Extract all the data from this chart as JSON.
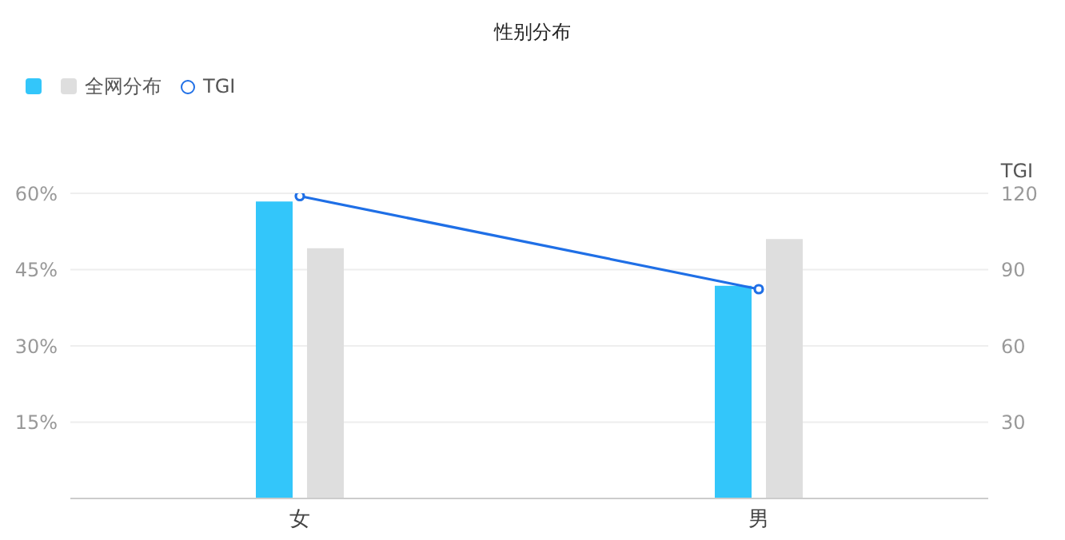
{
  "chart_data": {
    "type": "bar",
    "title": "性别分布",
    "categories": [
      "女",
      "男"
    ],
    "series": [
      {
        "color": "#33c6fa",
        "values": [
          58.4,
          41.8
        ]
      },
      {
        "name": "全网分布",
        "color": "#dedede",
        "values": [
          49.2,
          51.0
        ]
      },
      {
        "name": "TGI",
        "type": "line",
        "axis": "y2",
        "color": "#1f6fe6",
        "values": [
          118.9,
          82.3
        ],
        "marker": "circle"
      }
    ],
    "ylim": [
      0,
      60
    ],
    "yticks": [
      {
        "value": 15,
        "label": "15%"
      },
      {
        "value": 30,
        "label": "30%"
      },
      {
        "value": 45,
        "label": "45%"
      },
      {
        "value": 60,
        "label": "60%"
      }
    ],
    "y2label": "TGI",
    "y2lim": [
      0,
      120
    ],
    "y2ticks": [
      30,
      60,
      90,
      120
    ],
    "grid": "y",
    "legend": "top left"
  }
}
